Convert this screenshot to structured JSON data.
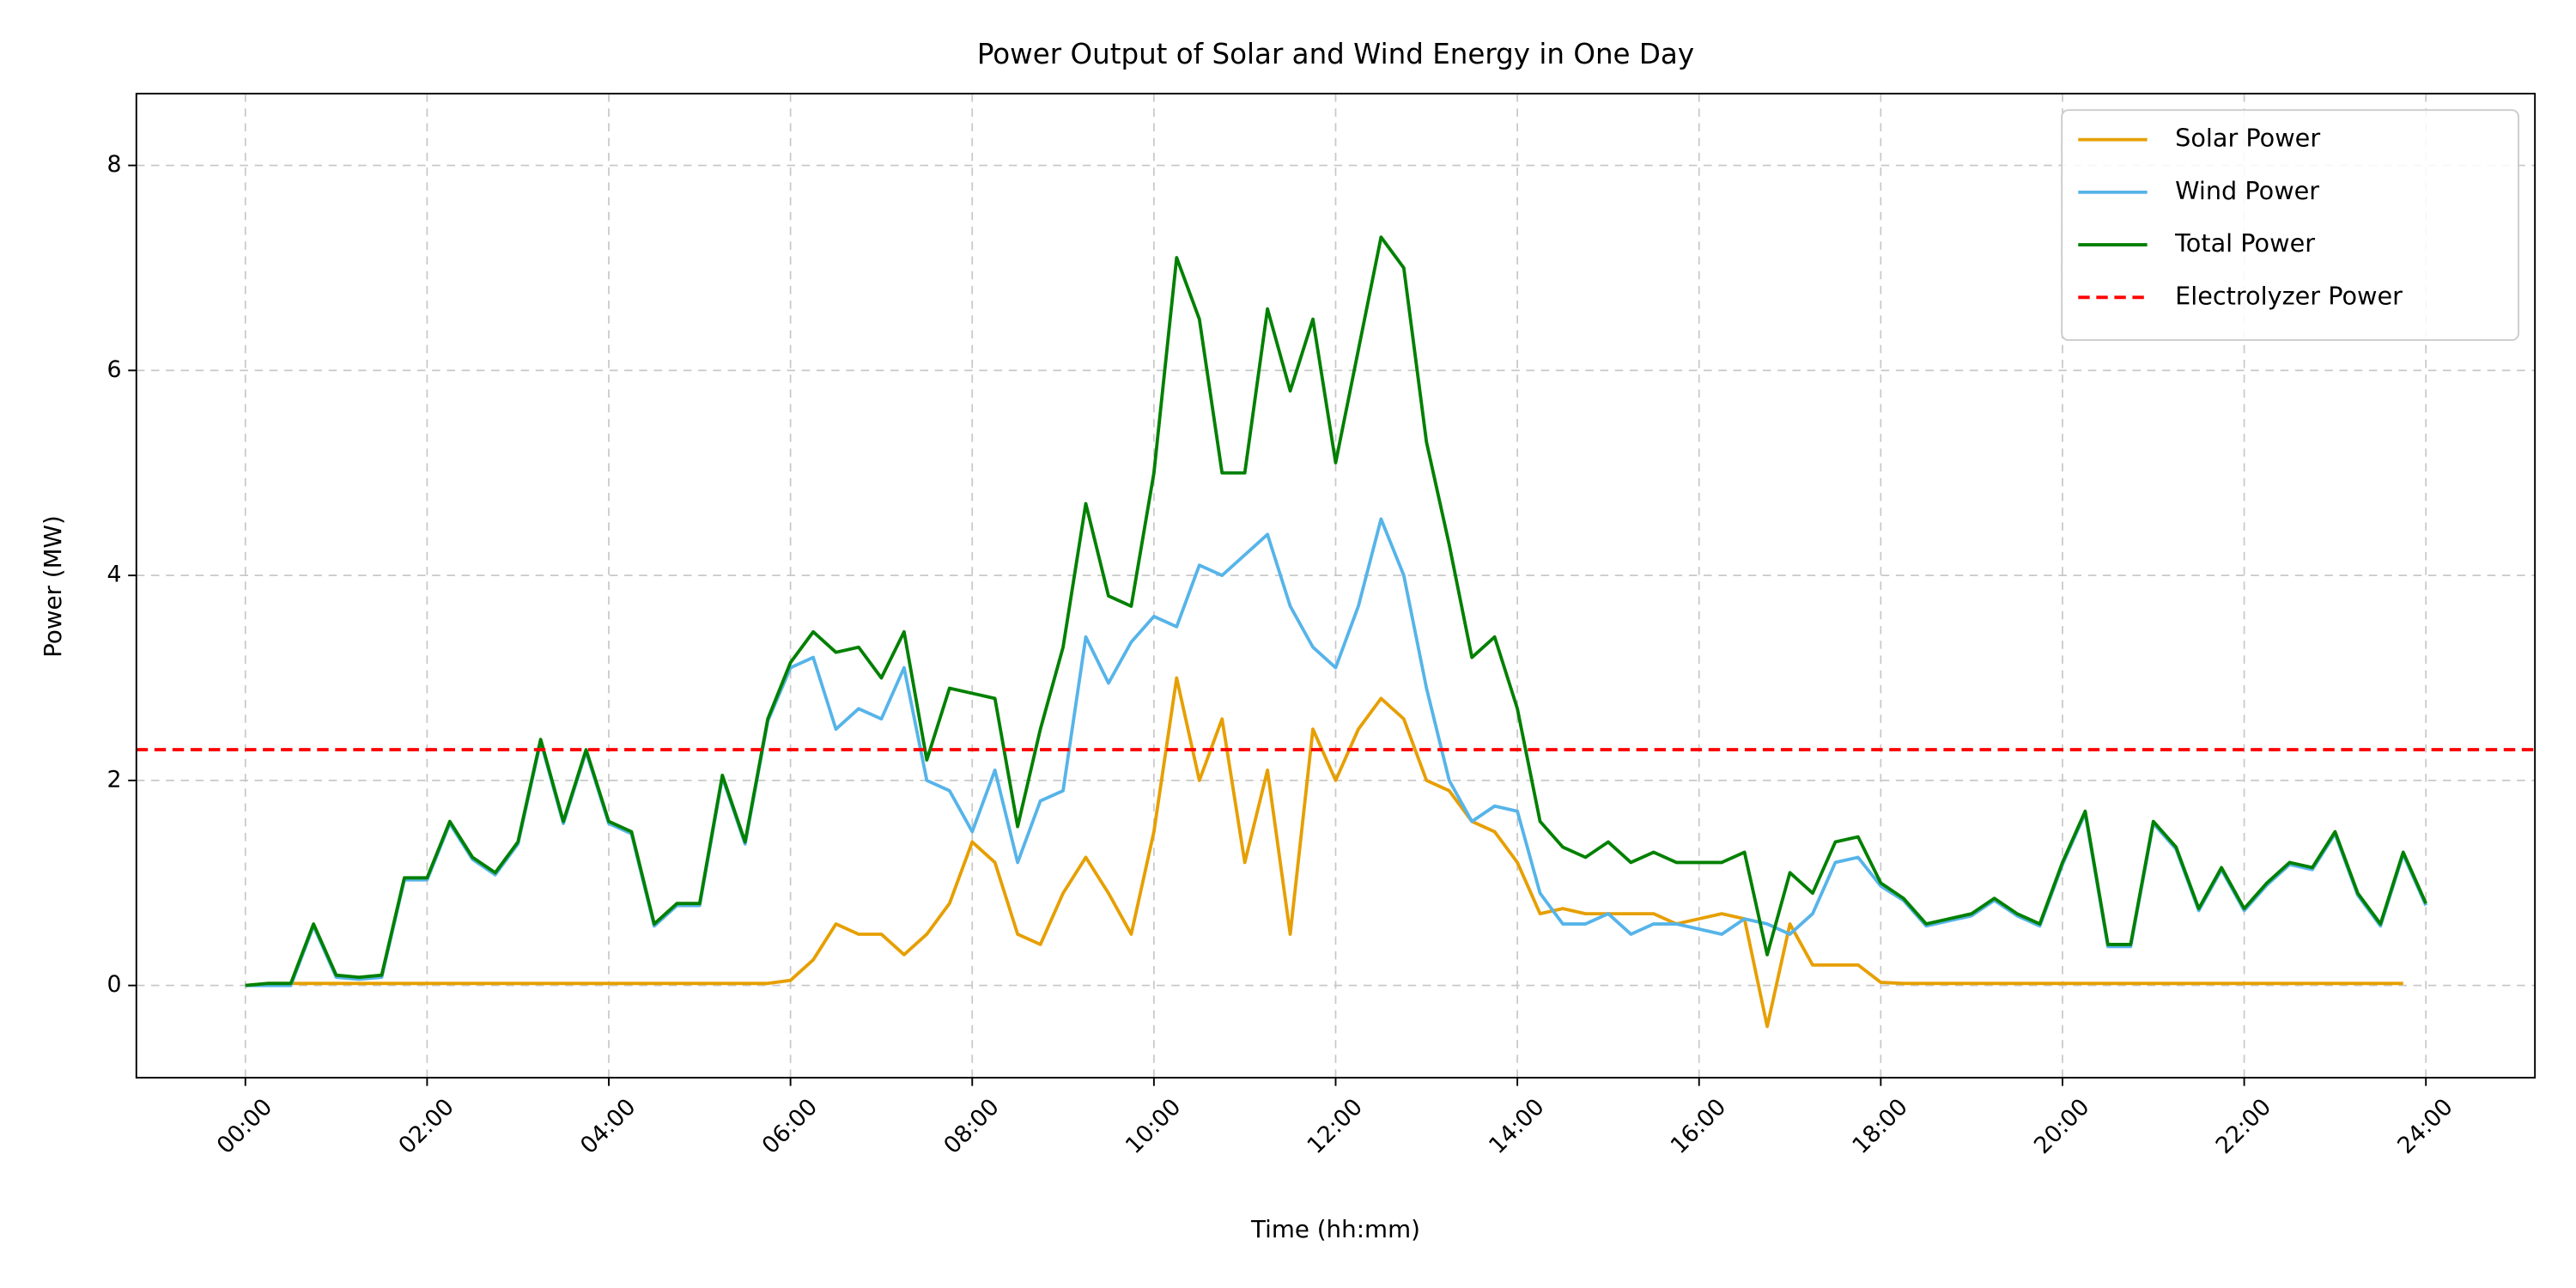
{
  "chart_data": {
    "type": "line",
    "title": "Power Output of Solar and Wind Energy in One Day",
    "x_label": "Time (hh:mm)",
    "y_label": "Power (MW)",
    "x": [
      0,
      0.25,
      0.5,
      0.75,
      1,
      1.25,
      1.5,
      1.75,
      2,
      2.25,
      2.5,
      2.75,
      3,
      3.25,
      3.5,
      3.75,
      4,
      4.25,
      4.5,
      4.75,
      5,
      5.25,
      5.5,
      5.75,
      6,
      6.25,
      6.5,
      6.75,
      7,
      7.25,
      7.5,
      7.75,
      8,
      8.25,
      8.5,
      8.75,
      9,
      9.25,
      9.5,
      9.75,
      10,
      10.25,
      10.5,
      10.75,
      11,
      11.25,
      11.5,
      11.75,
      12,
      12.25,
      12.5,
      12.75,
      13,
      13.25,
      13.5,
      13.75,
      14,
      14.25,
      14.5,
      14.75,
      15,
      15.25,
      15.5,
      15.75,
      16,
      16.25,
      16.5,
      16.75,
      17,
      17.25,
      17.5,
      17.75,
      18,
      18.25,
      18.5,
      18.75,
      19,
      19.25,
      19.5,
      19.75,
      20,
      20.25,
      20.5,
      20.75,
      21,
      21.25,
      21.5,
      21.75,
      22,
      22.25,
      22.5,
      22.75,
      23,
      23.25,
      23.5,
      23.75,
      24
    ],
    "series": [
      {
        "name": "Solar Power",
        "color": "#E69F00",
        "values": [
          0,
          0.02,
          0.02,
          0.02,
          0.02,
          0.02,
          0.02,
          0.02,
          0.02,
          0.02,
          0.02,
          0.02,
          0.02,
          0.02,
          0.02,
          0.02,
          0.02,
          0.02,
          0.02,
          0.02,
          0.02,
          0.02,
          0.02,
          0.02,
          0.05,
          0.25,
          0.6,
          0.5,
          0.5,
          0.3,
          0.5,
          0.8,
          1.4,
          1.2,
          0.5,
          0.4,
          0.9,
          1.25,
          0.9,
          0.5,
          1.5,
          3.0,
          2.0,
          2.6,
          1.2,
          2.1,
          0.5,
          2.5,
          2.0,
          2.5,
          2.8,
          2.6,
          2.0,
          1.9,
          1.6,
          1.5,
          1.2,
          0.7,
          0.75,
          0.7,
          0.7,
          0.7,
          0.7,
          0.6,
          0.65,
          0.7,
          0.65,
          -0.4,
          0.6,
          0.2,
          0.2,
          0.2,
          0.03,
          0.02,
          0.02,
          0.02,
          0.02,
          0.02,
          0.02,
          0.02,
          0.02,
          0.02,
          0.02,
          0.02,
          0.02,
          0.02,
          0.02,
          0.02,
          0.02,
          0.02,
          0.02,
          0.02,
          0.02,
          0.02,
          0.02,
          0.02,
          null
        ]
      },
      {
        "name": "Wind Power",
        "color": "#56B4E9",
        "values": [
          0,
          0,
          0,
          0.58,
          0.08,
          0.06,
          0.08,
          1.03,
          1.03,
          1.58,
          1.23,
          1.08,
          1.38,
          2.38,
          1.58,
          2.28,
          1.58,
          1.48,
          0.58,
          0.78,
          0.78,
          2.03,
          1.38,
          2.58,
          3.1,
          3.2,
          2.5,
          2.7,
          2.6,
          3.1,
          2.0,
          1.9,
          1.5,
          2.1,
          1.2,
          1.8,
          1.9,
          3.4,
          2.95,
          3.35,
          3.6,
          3.5,
          4.1,
          4.0,
          4.2,
          4.4,
          3.7,
          3.3,
          3.1,
          3.7,
          4.55,
          4.0,
          2.9,
          2.0,
          1.6,
          1.75,
          1.7,
          0.9,
          0.6,
          0.6,
          0.7,
          0.5,
          0.6,
          0.6,
          0.55,
          0.5,
          0.65,
          0.6,
          0.5,
          0.7,
          1.2,
          1.25,
          0.97,
          0.83,
          0.58,
          0.63,
          0.68,
          0.83,
          0.68,
          0.58,
          1.18,
          1.68,
          0.38,
          0.38,
          1.58,
          1.33,
          0.73,
          1.13,
          0.73,
          0.98,
          1.18,
          1.13,
          1.48,
          0.88,
          0.58,
          1.28,
          0.78
        ]
      },
      {
        "name": "Total Power",
        "color": "#008000",
        "values": [
          0,
          0.02,
          0.02,
          0.6,
          0.1,
          0.08,
          0.1,
          1.05,
          1.05,
          1.6,
          1.25,
          1.1,
          1.4,
          2.4,
          1.6,
          2.3,
          1.6,
          1.5,
          0.6,
          0.8,
          0.8,
          2.05,
          1.4,
          2.6,
          3.15,
          3.45,
          3.25,
          3.3,
          3.0,
          3.45,
          2.2,
          2.9,
          2.85,
          2.8,
          1.55,
          2.5,
          3.3,
          4.7,
          3.8,
          3.7,
          5.0,
          7.1,
          6.5,
          5.0,
          5.0,
          6.6,
          5.8,
          6.5,
          5.1,
          6.2,
          7.3,
          7.0,
          5.3,
          4.3,
          3.2,
          3.4,
          2.7,
          1.6,
          1.35,
          1.25,
          1.4,
          1.2,
          1.3,
          1.2,
          1.2,
          1.2,
          1.3,
          0.3,
          1.1,
          0.9,
          1.4,
          1.45,
          1.0,
          0.85,
          0.6,
          0.65,
          0.7,
          0.85,
          0.7,
          0.6,
          1.2,
          1.7,
          0.4,
          0.4,
          1.6,
          1.35,
          0.75,
          1.15,
          0.75,
          1.0,
          1.2,
          1.15,
          1.5,
          0.9,
          0.6,
          1.3,
          0.8
        ]
      }
    ],
    "reference_line": {
      "name": "Electrolyzer Power",
      "value": 2.3,
      "color": "#FF0000",
      "style": "dashed"
    },
    "xlim": [
      -1.2,
      25.2
    ],
    "ylim": [
      -0.9,
      8.7
    ],
    "xticks": [
      {
        "value": 0,
        "label": "00:00"
      },
      {
        "value": 2,
        "label": "02:00"
      },
      {
        "value": 4,
        "label": "04:00"
      },
      {
        "value": 6,
        "label": "06:00"
      },
      {
        "value": 8,
        "label": "08:00"
      },
      {
        "value": 10,
        "label": "10:00"
      },
      {
        "value": 12,
        "label": "12:00"
      },
      {
        "value": 14,
        "label": "14:00"
      },
      {
        "value": 16,
        "label": "16:00"
      },
      {
        "value": 18,
        "label": "18:00"
      },
      {
        "value": 20,
        "label": "20:00"
      },
      {
        "value": 22,
        "label": "22:00"
      },
      {
        "value": 24,
        "label": "24:00"
      }
    ],
    "yticks": [
      0,
      2,
      4,
      6,
      8
    ],
    "grid": true,
    "legend": "upper right"
  }
}
